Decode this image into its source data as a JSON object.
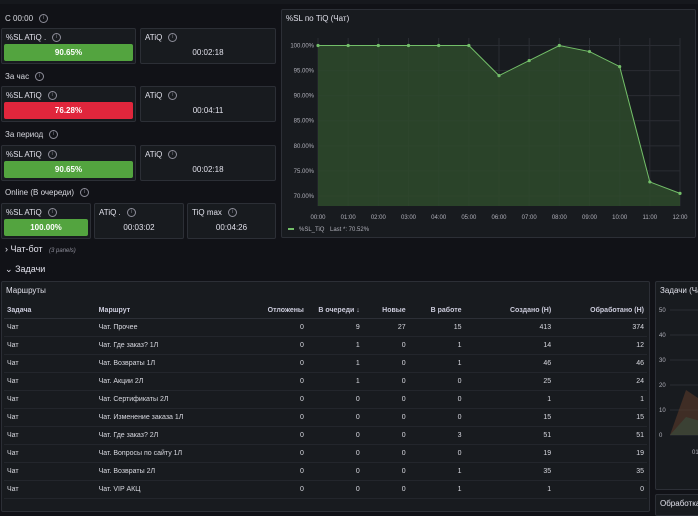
{
  "top_panels": {
    "section_since": "С 00:00",
    "section_hour": "За час",
    "section_period": "За период",
    "section_online": "Online (В очереди)",
    "since": {
      "sl_title": "%SL ATiQ .",
      "sl_value": "90.65%",
      "atiq_title": "ATiQ",
      "atiq_value": "00:02:18"
    },
    "hour": {
      "sl_title": "%SL ATiQ",
      "sl_value": "76.28%",
      "atiq_title": "ATiQ",
      "atiq_value": "00:04:11"
    },
    "period": {
      "sl_title": "%SL ATiQ",
      "sl_value": "90.65%",
      "atiq_title": "ATiQ",
      "atiq_value": "00:02:18"
    },
    "online": {
      "sl_title": "%SL ATiQ",
      "sl_value": "100.00%",
      "atiq_title": "ATiQ .",
      "atiq_value": "00:03:02",
      "tiq_title": "TiQ max",
      "tiq_value": "00:04:26"
    },
    "colors": {
      "good": "#53a43f",
      "bad": "#e0263c"
    }
  },
  "sl_chart": {
    "title": "%SL по TiQ (Чат)",
    "legend_name": "%SL_TiQ",
    "legend_last": "Last *: 70.52%",
    "color": "#73bf69"
  },
  "chart_data": {
    "type": "area",
    "title": "%SL по TiQ (Чат)",
    "x": [
      "00:00",
      "01:00",
      "02:00",
      "03:00",
      "04:00",
      "05:00",
      "06:00",
      "07:00",
      "08:00",
      "09:00",
      "10:00",
      "11:00",
      "12:00"
    ],
    "y_ticks": [
      "100.00%",
      "95.00%",
      "90.00%",
      "85.00%",
      "80.00%",
      "75.00%",
      "70.00%"
    ],
    "ylim": [
      68,
      101.5
    ],
    "series": [
      {
        "name": "%SL_TiQ",
        "values": [
          100,
          100,
          100,
          100,
          100,
          100,
          94,
          97,
          100,
          98.8,
          95.8,
          72.8,
          70.52
        ]
      }
    ]
  },
  "rows": {
    "chatbot_label": "Чат-бот",
    "chatbot_count": "(3 panels)",
    "tasks_label": "Задачи"
  },
  "routes": {
    "title": "Маршруты",
    "columns": [
      "Задача",
      "Маршрут",
      "Отложены",
      "В очереди",
      "Новые",
      "В работе",
      "Создано (Н)",
      "Обработано (Н)"
    ],
    "sort_indicator": "↓",
    "rows": [
      [
        "Чат",
        "Чат. Прочее",
        "0",
        "9",
        "27",
        "15",
        "413",
        "374"
      ],
      [
        "Чат",
        "Чат. Где заказ? 1Л",
        "0",
        "1",
        "0",
        "1",
        "14",
        "12"
      ],
      [
        "Чат",
        "Чат. Возвраты 1Л",
        "0",
        "1",
        "0",
        "1",
        "46",
        "46"
      ],
      [
        "Чат",
        "Чат. Акции 2Л",
        "0",
        "1",
        "0",
        "0",
        "25",
        "24"
      ],
      [
        "Чат",
        "Чат. Сертификаты 2Л",
        "0",
        "0",
        "0",
        "0",
        "1",
        "1"
      ],
      [
        "Чат",
        "Чат. Изменение заказа 1Л",
        "0",
        "0",
        "0",
        "0",
        "15",
        "15"
      ],
      [
        "Чат",
        "Чат. Где заказ? 2Л",
        "0",
        "0",
        "0",
        "3",
        "51",
        "51"
      ],
      [
        "Чат",
        "Чат. Вопросы по сайту 1Л",
        "0",
        "0",
        "0",
        "0",
        "19",
        "19"
      ],
      [
        "Чат",
        "Чат. Возвраты 2Л",
        "0",
        "0",
        "0",
        "1",
        "35",
        "35"
      ],
      [
        "Чат",
        "Чат. VIP АКЦ",
        "0",
        "0",
        "0",
        "1",
        "1",
        "0"
      ]
    ]
  },
  "right_partial": {
    "title": "Задачи (Ча",
    "y_ticks": [
      "50",
      "40",
      "30",
      "20",
      "10",
      "0"
    ],
    "x_tick": "01",
    "bottom_title": "Обработка"
  }
}
